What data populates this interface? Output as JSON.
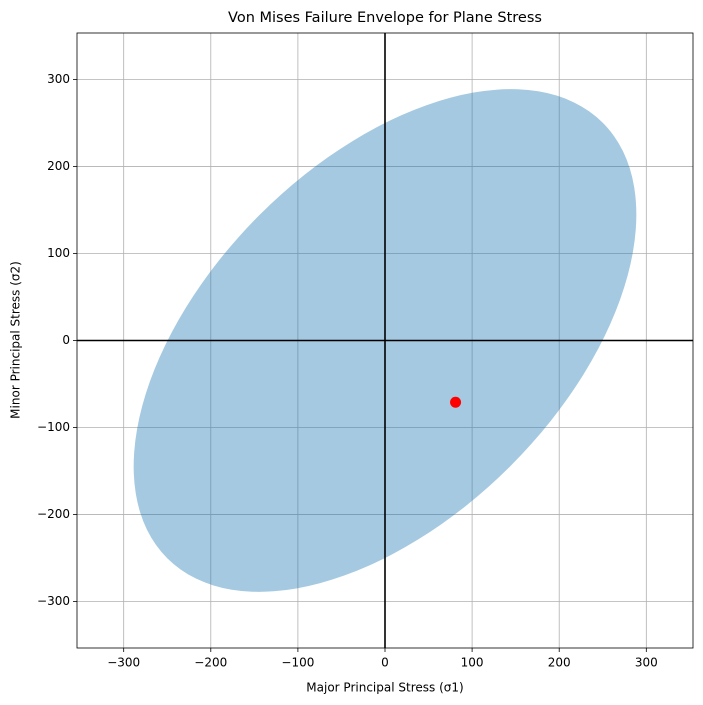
{
  "chart_data": {
    "type": "envelope",
    "title": "Von Mises Failure Envelope for Plane Stress",
    "x_label": "Major Principal Stress (σ1)",
    "y_label": "Minor Principal Stress (σ2)",
    "xlim": [
      -353.6,
      353.6
    ],
    "ylim": [
      -353.6,
      353.6
    ],
    "xticks": [
      {
        "value": -300,
        "label": "−300"
      },
      {
        "value": -200,
        "label": "−200"
      },
      {
        "value": -100,
        "label": "−100"
      },
      0,
      100,
      200,
      300
    ],
    "yticks": [
      {
        "value": -300,
        "label": "−300"
      },
      {
        "value": -200,
        "label": "−200"
      },
      {
        "value": -100,
        "label": "−100"
      },
      0,
      100,
      200,
      300
    ],
    "grid": true,
    "axhline": 0,
    "axvline": 0,
    "ellipse": {
      "center": [
        0,
        0
      ],
      "width": 707.1,
      "height": 408.2,
      "angle": 45,
      "color": "#1f77b4",
      "alpha": 0.4
    },
    "points": {
      "x": [
        81
      ],
      "y": [
        -71
      ],
      "color": "#ff0000"
    }
  }
}
